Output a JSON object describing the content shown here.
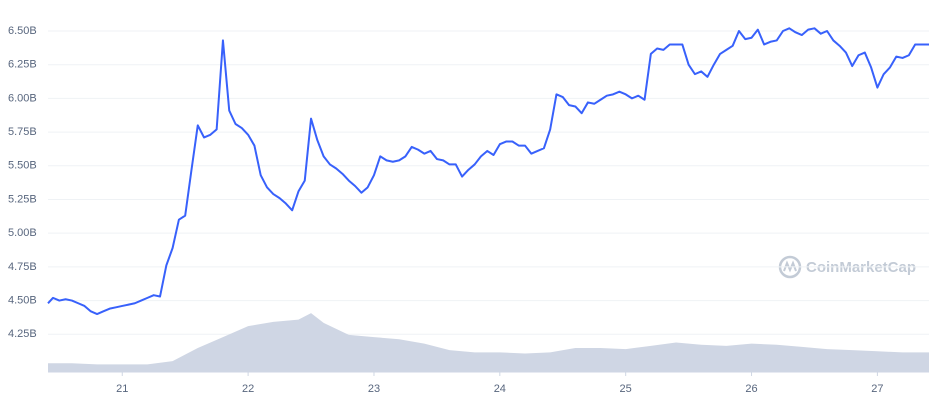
{
  "chart_data": {
    "type": "line",
    "watermark": "CoinMarketCap",
    "color": "#3861fb",
    "grid": true,
    "ylim": [
      3.97,
      6.73
    ],
    "yticks": [
      {
        "value": 4.25,
        "label": "4.25B"
      },
      {
        "value": 4.5,
        "label": "4.50B"
      },
      {
        "value": 4.75,
        "label": "4.75B"
      },
      {
        "value": 5.0,
        "label": "5.00B"
      },
      {
        "value": 5.25,
        "label": "5.25B"
      },
      {
        "value": 5.5,
        "label": "5.50B"
      },
      {
        "value": 5.75,
        "label": "5.75B"
      },
      {
        "value": 6.0,
        "label": "6.00B"
      },
      {
        "value": 6.25,
        "label": "6.25B"
      },
      {
        "value": 6.5,
        "label": "6.50B"
      }
    ],
    "xlim": [
      20.41,
      27.41
    ],
    "xticks": [
      21,
      22,
      23,
      24,
      25,
      26,
      27
    ],
    "x": [
      20.41,
      20.45,
      20.5,
      20.55,
      20.6,
      20.65,
      20.7,
      20.75,
      20.8,
      20.85,
      20.9,
      20.95,
      21,
      21.05,
      21.1,
      21.15,
      21.2,
      21.25,
      21.3,
      21.35,
      21.4,
      21.45,
      21.5,
      21.55,
      21.6,
      21.65,
      21.7,
      21.75,
      21.8,
      21.85,
      21.9,
      21.95,
      22,
      22.05,
      22.1,
      22.15,
      22.2,
      22.25,
      22.3,
      22.35,
      22.4,
      22.45,
      22.5,
      22.55,
      22.6,
      22.65,
      22.7,
      22.75,
      22.8,
      22.85,
      22.9,
      22.95,
      23,
      23.05,
      23.1,
      23.15,
      23.2,
      23.25,
      23.3,
      23.35,
      23.4,
      23.45,
      23.5,
      23.55,
      23.6,
      23.65,
      23.7,
      23.75,
      23.8,
      23.85,
      23.9,
      23.95,
      24,
      24.05,
      24.1,
      24.15,
      24.2,
      24.25,
      24.3,
      24.35,
      24.4,
      24.45,
      24.5,
      24.55,
      24.6,
      24.65,
      24.7,
      24.75,
      24.8,
      24.85,
      24.9,
      24.95,
      25,
      25.05,
      25.1,
      25.15,
      25.2,
      25.25,
      25.3,
      25.35,
      25.4,
      25.45,
      25.5,
      25.55,
      25.6,
      25.65,
      25.7,
      25.75,
      25.8,
      25.85,
      25.9,
      25.95,
      26,
      26.05,
      26.1,
      26.15,
      26.2,
      26.25,
      26.3,
      26.35,
      26.4,
      26.45,
      26.5,
      26.55,
      26.6,
      26.65,
      26.7,
      26.75,
      26.8,
      26.85,
      26.9,
      26.95,
      27,
      27.05,
      27.1,
      27.15,
      27.2,
      27.25,
      27.3,
      27.35,
      27.41
    ],
    "values": [
      4.48,
      4.52,
      4.5,
      4.51,
      4.5,
      4.48,
      4.46,
      4.42,
      4.4,
      4.42,
      4.44,
      4.45,
      4.46,
      4.47,
      4.48,
      4.5,
      4.52,
      4.54,
      4.53,
      4.76,
      4.89,
      5.1,
      5.13,
      5.47,
      5.8,
      5.71,
      5.73,
      5.77,
      6.43,
      5.91,
      5.81,
      5.78,
      5.73,
      5.65,
      5.43,
      5.34,
      5.29,
      5.26,
      5.22,
      5.17,
      5.31,
      5.39,
      5.85,
      5.69,
      5.57,
      5.51,
      5.48,
      5.44,
      5.39,
      5.35,
      5.3,
      5.34,
      5.43,
      5.57,
      5.54,
      5.53,
      5.54,
      5.57,
      5.64,
      5.62,
      5.59,
      5.61,
      5.55,
      5.54,
      5.51,
      5.51,
      5.42,
      5.47,
      5.51,
      5.57,
      5.61,
      5.58,
      5.66,
      5.68,
      5.68,
      5.65,
      5.65,
      5.59,
      5.61,
      5.63,
      5.77,
      6.03,
      6.01,
      5.95,
      5.94,
      5.89,
      5.97,
      5.96,
      5.99,
      6.02,
      6.03,
      6.05,
      6.03,
      6.0,
      6.02,
      5.99,
      6.33,
      6.37,
      6.36,
      6.4,
      6.4,
      6.4,
      6.25,
      6.18,
      6.2,
      6.16,
      6.25,
      6.33,
      6.36,
      6.39,
      6.5,
      6.44,
      6.45,
      6.51,
      6.4,
      6.42,
      6.43,
      6.5,
      6.52,
      6.49,
      6.47,
      6.51,
      6.52,
      6.48,
      6.5,
      6.43,
      6.39,
      6.34,
      6.24,
      6.32,
      6.34,
      6.23,
      6.08,
      6.18,
      6.23,
      6.31,
      6.3,
      6.32,
      6.4,
      6.4,
      6.4
    ],
    "volume": {
      "type": "area",
      "axis": "y2",
      "color": "#cfd6e4",
      "x": [
        20.41,
        20.6,
        20.8,
        21,
        21.2,
        21.4,
        21.6,
        21.8,
        22,
        22.2,
        22.4,
        22.5,
        22.6,
        22.8,
        23,
        23.2,
        23.4,
        23.6,
        23.8,
        24,
        24.2,
        24.4,
        24.6,
        24.8,
        25,
        25.2,
        25.4,
        25.6,
        25.8,
        26,
        26.2,
        26.4,
        26.6,
        26.8,
        27,
        27.2,
        27.41
      ],
      "values": [
        8,
        8,
        7,
        7,
        7,
        10,
        22,
        32,
        42,
        46,
        48,
        54,
        45,
        34,
        32,
        30,
        26,
        20,
        18,
        18,
        17,
        18,
        22,
        22,
        21,
        24,
        27,
        25,
        24,
        26,
        25,
        23,
        21,
        20,
        19,
        18,
        18
      ]
    },
    "y2lim": [
      0,
      341
    ]
  }
}
